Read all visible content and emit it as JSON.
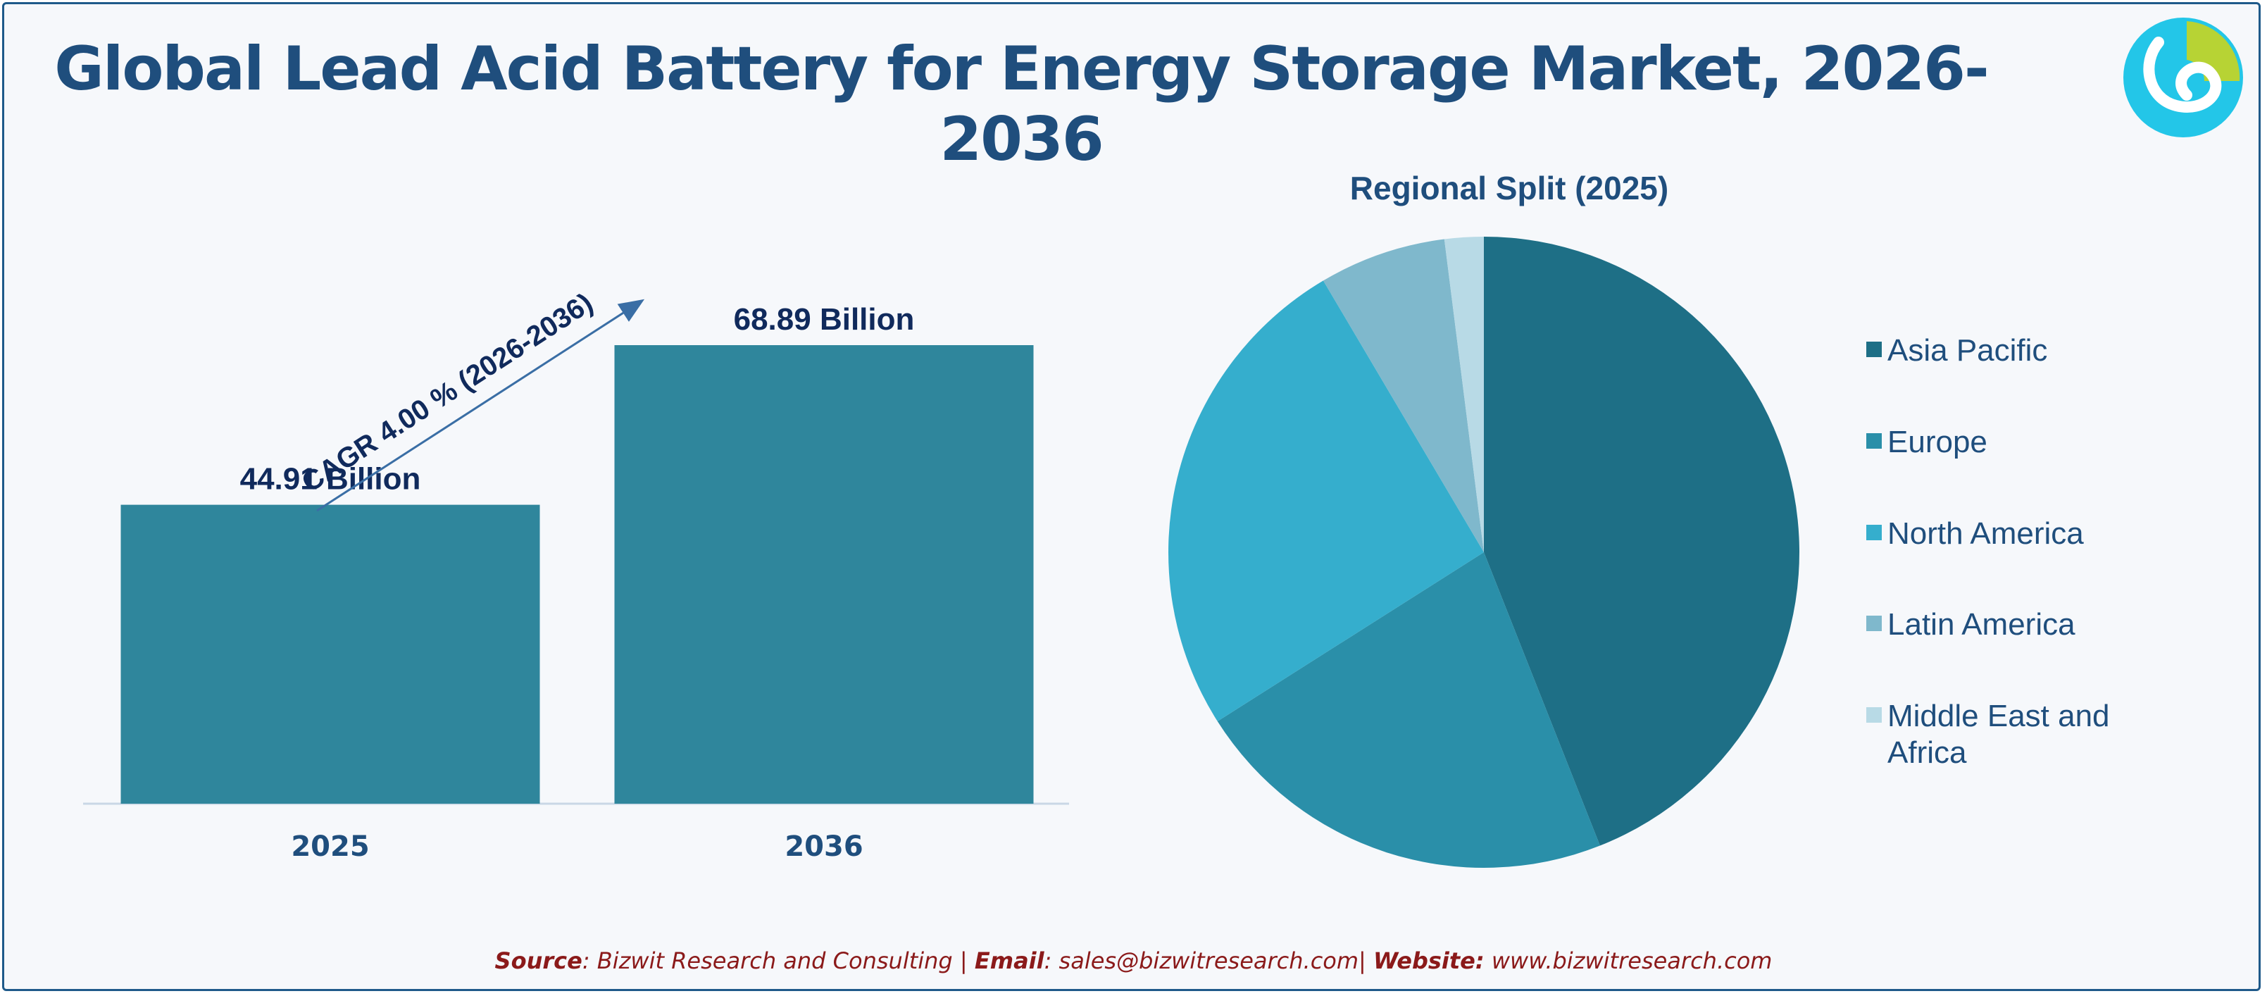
{
  "title": "Global Lead Acid Battery for Energy Storage Market, 2026-2036",
  "colors": {
    "bar": "#2f869c",
    "frame": "#1f5a8a",
    "title": "#1f4e7d",
    "source": "#8b1a1a",
    "pie": [
      "#1e6f86",
      "#2a8fa9",
      "#35aecd",
      "#7fb8cc",
      "#b8dae6"
    ]
  },
  "chart_data": [
    {
      "type": "bar",
      "categories": [
        "2025",
        "2036"
      ],
      "values": [
        44.91,
        68.89
      ],
      "value_labels": [
        "44.91 Billion",
        "68.89 Billion"
      ],
      "annotation": "CAGR 4.00 % (2026-2036)",
      "ylim": [
        0,
        75
      ]
    },
    {
      "type": "pie",
      "title": "Regional Split (2025)",
      "labels": [
        "Asia Pacific",
        "Europe",
        "North America",
        "Latin America",
        "Middle East and Africa"
      ],
      "values": [
        44,
        22,
        25.5,
        6.5,
        2
      ],
      "legend_placement": "right"
    }
  ],
  "source": {
    "source_label": "Source",
    "source_text": ": Bizwit Research and Consulting | ",
    "email_label": "Email",
    "email_text": ": sales@bizwitresearch.com| ",
    "website_label": "Website:",
    "website_text": " www.bizwitresearch.com"
  }
}
